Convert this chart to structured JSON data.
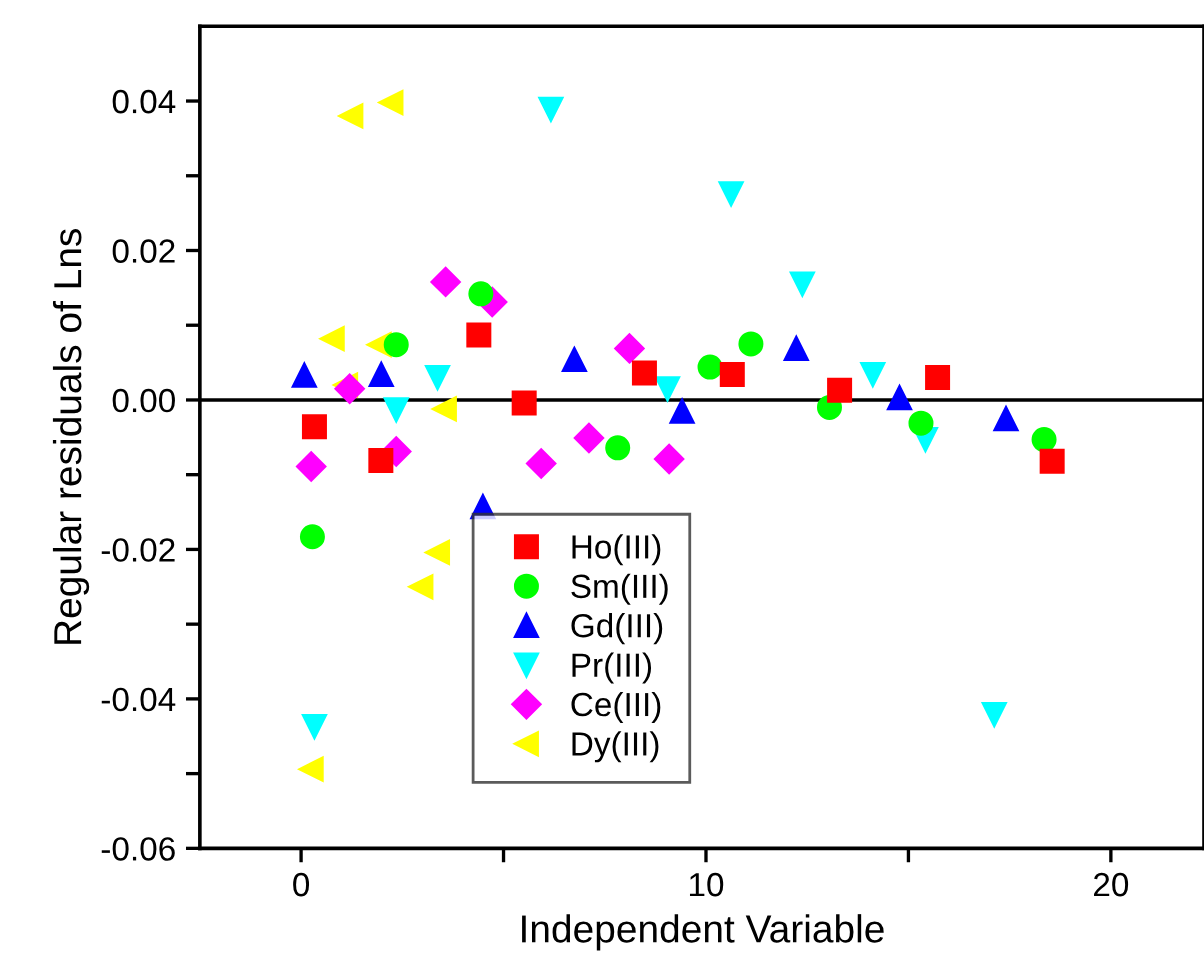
{
  "chart_data": {
    "type": "scatter",
    "xlabel": "Independent Variable",
    "ylabel": "Regular residuals of Lns",
    "xlim": [
      -2.5,
      22.3
    ],
    "ylim": [
      -0.06,
      0.05
    ],
    "xticks": [
      0,
      {
        "value": 5,
        "label": null
      },
      10,
      {
        "value": 15,
        "label": null
      },
      20
    ],
    "yticks": [
      -0.06,
      {
        "value": -0.05,
        "label": null
      },
      -0.04,
      {
        "value": -0.03,
        "label": null
      },
      -0.02,
      {
        "value": -0.01,
        "label": null
      },
      {
        "value": 0,
        "label": "0.00"
      },
      {
        "value": 0.01,
        "label": null
      },
      0.02,
      {
        "value": 0.03,
        "label": null
      },
      0.04
    ],
    "grid": false,
    "legend": "bottom",
    "ref_lines": [
      {
        "axis": "y",
        "value": 0,
        "color": "#000000",
        "line_style": "solid"
      }
    ],
    "series": [
      {
        "name": "Ho(III)",
        "color": "#ff0000",
        "marker": "square",
        "x": [
          0.33,
          1.97,
          4.39,
          5.51,
          8.48,
          10.65,
          13.3,
          15.72,
          18.55
        ],
        "values": [
          -0.0036,
          -0.0081,
          0.0087,
          -0.0004,
          0.0036,
          0.0034,
          0.0013,
          0.003,
          -0.0082
        ]
      },
      {
        "name": "Sm(III)",
        "color": "#00ff00",
        "marker": "circle",
        "x": [
          0.28,
          2.35,
          4.44,
          7.82,
          10.1,
          11.11,
          13.05,
          15.31,
          18.35
        ],
        "values": [
          -0.0183,
          0.0074,
          0.0142,
          -0.0064,
          0.0044,
          0.0075,
          -0.001,
          -0.0031,
          -0.0053
        ]
      },
      {
        "name": "Gd(III)",
        "color": "#0000ff",
        "marker": "triangle",
        "x": [
          0.08,
          1.98,
          4.49,
          6.75,
          9.41,
          12.23,
          14.78,
          17.41
        ],
        "values": [
          0.0033,
          0.0034,
          -0.0143,
          0.0054,
          -0.0015,
          0.0069,
          0.0003,
          -0.0025
        ]
      },
      {
        "name": "Pr(III)",
        "color": "#00ffff",
        "marker": "triangle_down",
        "x": [
          0.33,
          2.35,
          3.37,
          6.17,
          9.05,
          10.62,
          12.38,
          14.12,
          15.42,
          17.12
        ],
        "values": [
          -0.0437,
          -0.0013,
          0.003,
          0.0389,
          0.0015,
          0.0276,
          0.0155,
          0.0034,
          -0.0053,
          -0.0421
        ]
      },
      {
        "name": "Ce(III)",
        "color": "#ff00ff",
        "marker": "diamond",
        "x": [
          0.25,
          1.2,
          2.35,
          3.57,
          4.72,
          5.93,
          7.11,
          8.11,
          9.09
        ],
        "values": [
          -0.0089,
          0.0015,
          -0.0069,
          0.0158,
          0.0131,
          -0.0085,
          -0.0051,
          0.0069,
          -0.0079
        ]
      },
      {
        "name": "Dy(III)",
        "color": "#ffff00",
        "marker": "triangle_left",
        "x": [
          0.25,
          0.77,
          1.1,
          1.23,
          1.93,
          2.22,
          2.96,
          3.37,
          3.54
        ],
        "values": [
          -0.0494,
          0.0082,
          0.002,
          0.038,
          0.0074,
          0.0398,
          -0.025,
          -0.0204,
          -0.0012
        ]
      }
    ]
  }
}
